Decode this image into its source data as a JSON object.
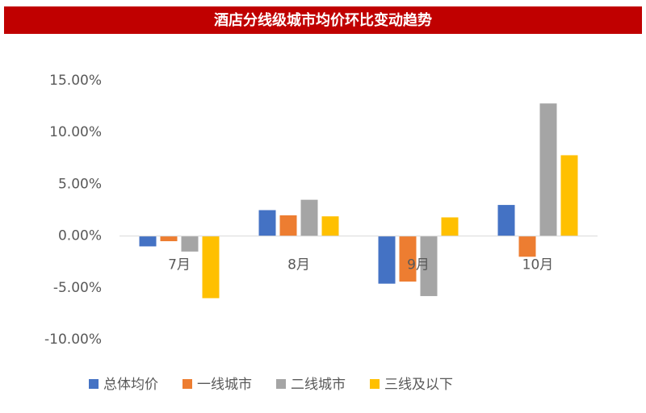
{
  "chart_data": {
    "type": "bar",
    "title": "酒店分线级城市均价环比变动趋势",
    "categories": [
      "7月",
      "8月",
      "9月",
      "10月"
    ],
    "series": [
      {
        "name": "总体均价",
        "color": "#4472c4",
        "values": [
          -1.0,
          2.5,
          -4.6,
          3.0
        ]
      },
      {
        "name": "一线城市",
        "color": "#ed7d31",
        "values": [
          -0.5,
          2.0,
          -4.4,
          -2.0
        ]
      },
      {
        "name": "二线城市",
        "color": "#a5a5a5",
        "values": [
          -1.5,
          3.5,
          -5.8,
          12.8
        ]
      },
      {
        "name": "三线及以下",
        "color": "#ffc000",
        "values": [
          -6.0,
          1.9,
          1.8,
          7.8
        ]
      }
    ],
    "ylim": [
      -10,
      15
    ],
    "yticks": [
      {
        "value": -10,
        "label": "-10.00%"
      },
      {
        "value": -5,
        "label": "-5.00%"
      },
      {
        "value": 0,
        "label": "0.00%"
      },
      {
        "value": 5,
        "label": "5.00%"
      },
      {
        "value": 10,
        "label": "10.00%"
      },
      {
        "value": 15,
        "label": "15.00%"
      }
    ],
    "grid": false,
    "legend": "bottom"
  }
}
